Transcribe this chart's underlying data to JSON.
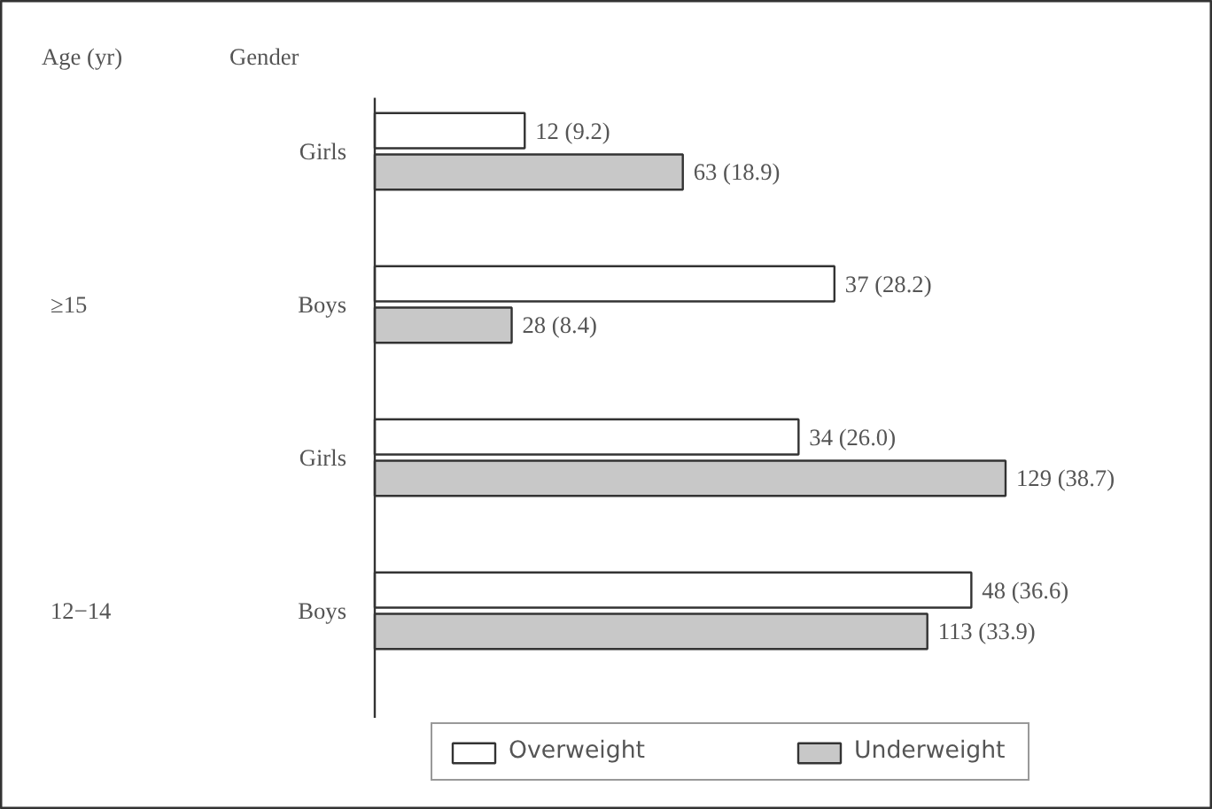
{
  "chart_data": {
    "type": "bar",
    "orientation": "horizontal",
    "categories": [
      "Girls",
      "Boys",
      "Girls",
      "Boys"
    ],
    "annotations": [
      "Age (yr)",
      "Gender",
      "≥15",
      "12−14"
    ],
    "series": [
      {
        "name": "Overweight",
        "color": "#ffffff",
        "values": [
          9.2,
          28.2,
          26.0,
          36.6
        ],
        "value_labels": [
          "12 (9.2)",
          "37 (28.2)",
          "34 (26.0)",
          "48 (36.6)"
        ]
      },
      {
        "name": "Underweight",
        "color": "#c8c8c8",
        "values": [
          18.9,
          8.4,
          38.7,
          33.9
        ],
        "value_labels": [
          "63 (18.9)",
          "28 (8.4)",
          "129 (38.7)",
          "113 (33.9)"
        ]
      }
    ],
    "legend": "bottom",
    "grid": false
  }
}
